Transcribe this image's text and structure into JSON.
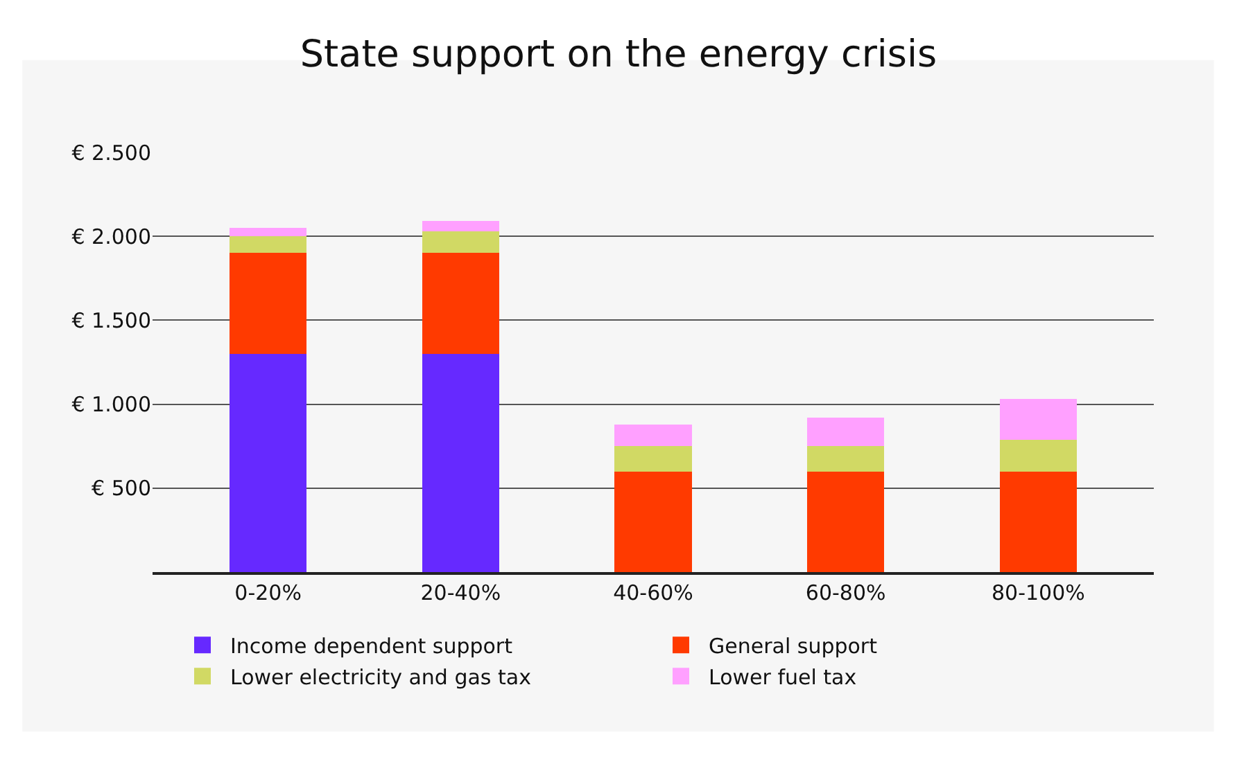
{
  "chart_data": {
    "type": "bar",
    "title": "State support on the energy crisis",
    "stacked": true,
    "categories": [
      "0-20%",
      "20-40%",
      "40-60%",
      "60-80%",
      "80-100%"
    ],
    "series": [
      {
        "name": "Income dependent support",
        "color": "#6629ff",
        "values": [
          1300,
          1300,
          0,
          0,
          0
        ]
      },
      {
        "name": "General support",
        "color": "#ff3a00",
        "values": [
          600,
          600,
          600,
          600,
          600
        ]
      },
      {
        "name": "Lower electricity and gas tax",
        "color": "#d1d964",
        "values": [
          100,
          130,
          150,
          150,
          190
        ]
      },
      {
        "name": "Lower fuel tax",
        "color": "#ffa0ff",
        "values": [
          50,
          60,
          130,
          170,
          240
        ]
      }
    ],
    "ylim": [
      0,
      2500
    ],
    "yticks": [
      {
        "value": 500,
        "label": "€ 500"
      },
      {
        "value": 1000,
        "label": "€ 1.000"
      },
      {
        "value": 1500,
        "label": "€ 1.500"
      },
      {
        "value": 2000,
        "label": "€ 2.000"
      },
      {
        "value": 2500,
        "label": "€ 2.500"
      }
    ],
    "grid": "y",
    "legend": "bottom"
  }
}
